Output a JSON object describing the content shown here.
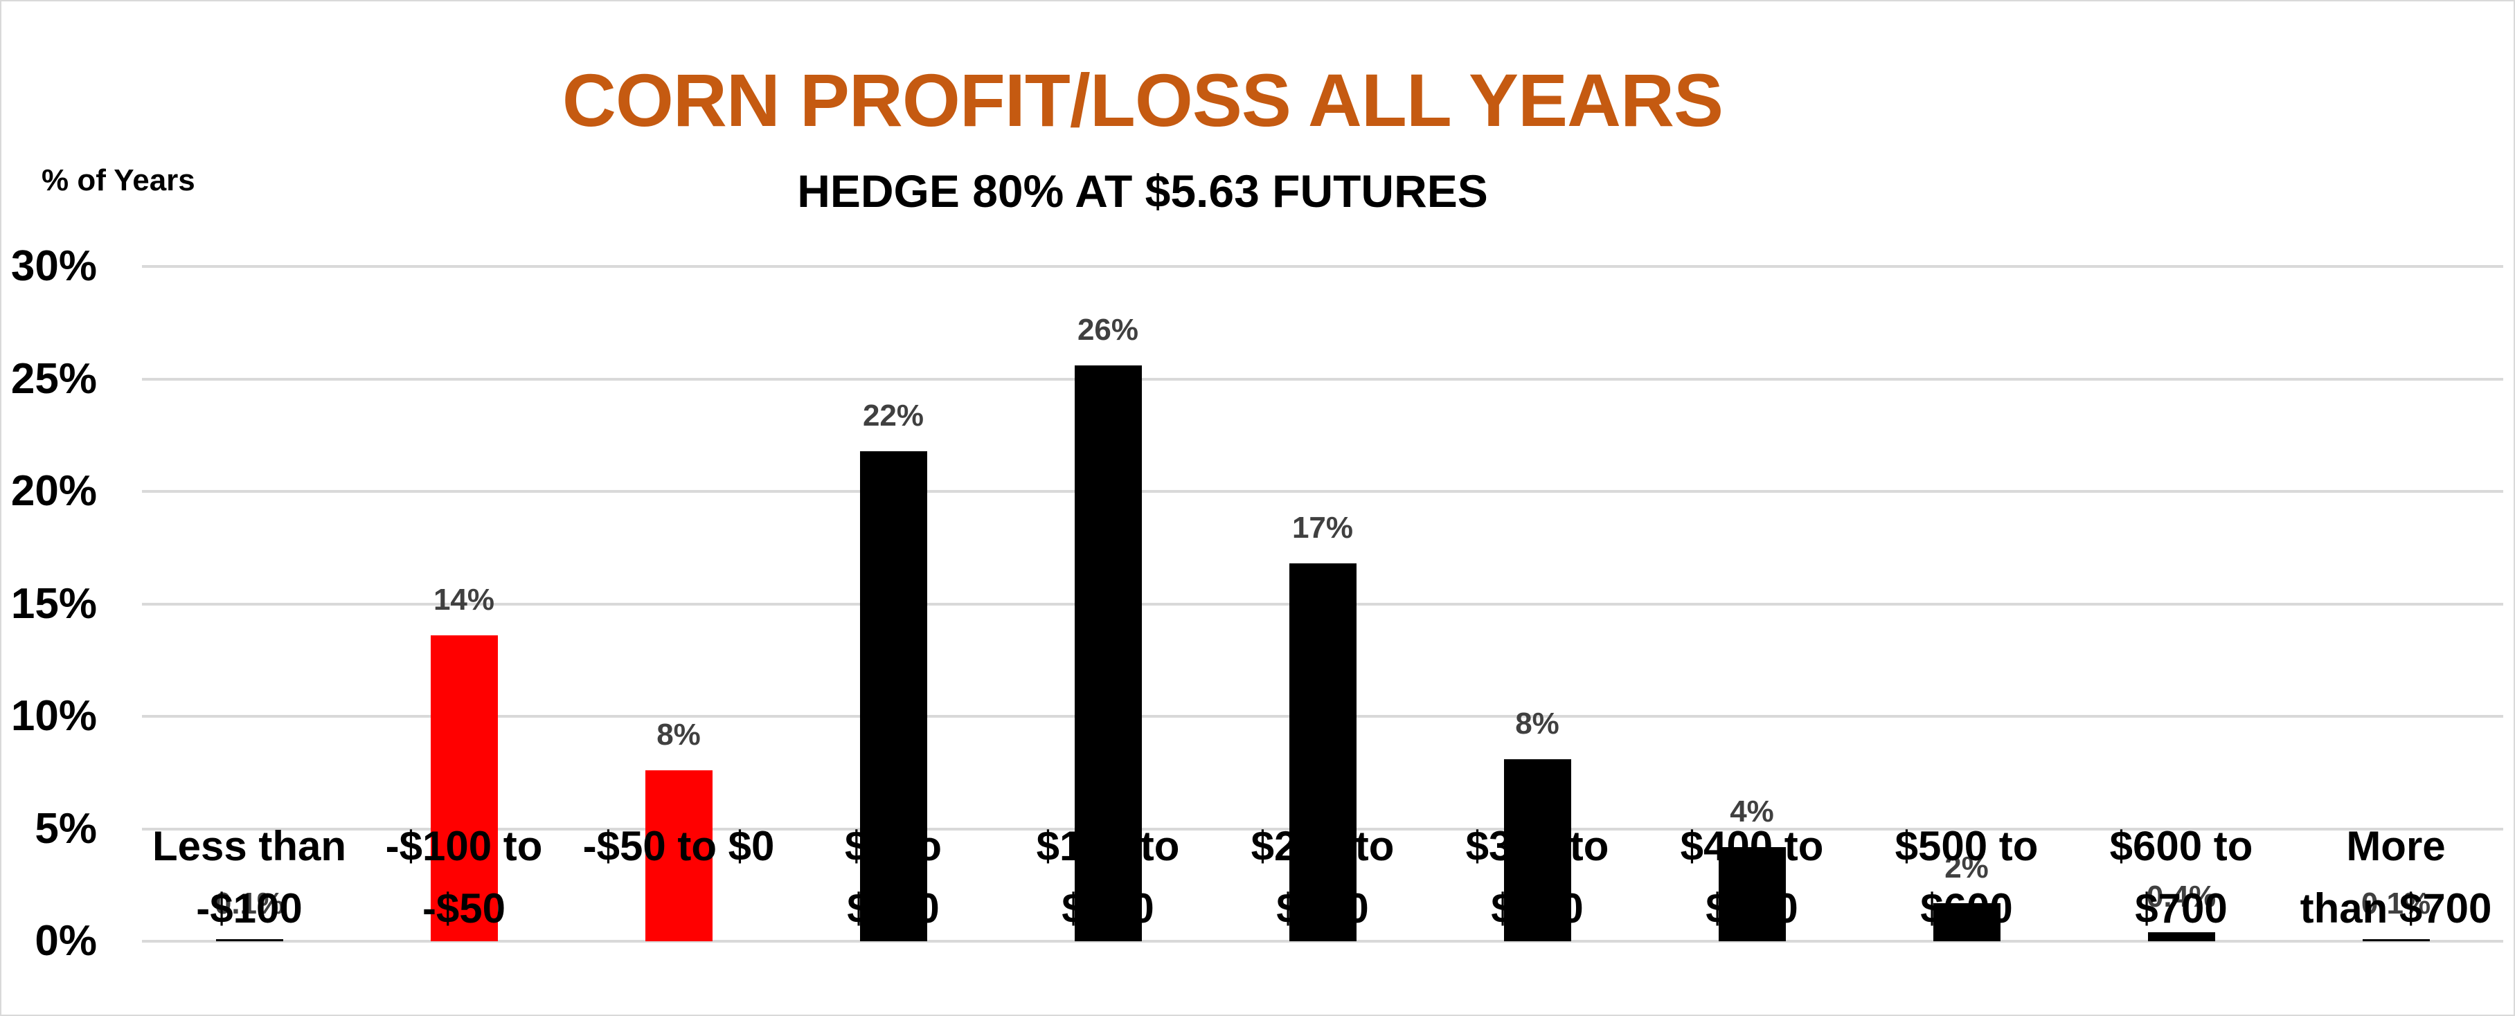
{
  "chart_data": {
    "type": "bar",
    "title": "CORN PROFIT/LOSS ALL YEARS",
    "subtitle": "HEDGE 80% AT $5.63 FUTURES",
    "xlabel": "",
    "ylabel": "% of Years",
    "ylim": [
      0,
      30
    ],
    "yticks": [
      "0%",
      "5%",
      "10%",
      "15%",
      "20%",
      "25%",
      "30%"
    ],
    "grid": true,
    "legend": "none",
    "categories": [
      "Less than -$100",
      "-$100 to -$50",
      "-$50 to $0",
      "$0 to $100",
      "$100 to $200",
      "$200 to $300",
      "$300 to $400",
      "$400 to $500",
      "$500 to $600",
      "$600 to $700",
      "More than $700"
    ],
    "values": [
      0.1,
      13.6,
      7.6,
      21.8,
      25.6,
      16.8,
      8.1,
      4.2,
      1.7,
      0.4,
      0.1
    ],
    "data_labels": [
      "0.1%",
      "14%",
      "8%",
      "22%",
      "26%",
      "17%",
      "8%",
      "4%",
      "2%",
      "0.4%",
      "0.1%"
    ],
    "colors": [
      "#000000",
      "#FF0000",
      "#FF0000",
      "#000000",
      "#000000",
      "#000000",
      "#000000",
      "#000000",
      "#000000",
      "#000000",
      "#000000"
    ]
  },
  "header": {
    "title": "CORN PROFIT/LOSS ALL YEARS",
    "subtitle": "HEDGE 80% AT $5.63 FUTURES",
    "title_color": "#C55A11"
  },
  "axis": {
    "y_title": "% of Years",
    "y_ticks": [
      "30%",
      "25%",
      "20%",
      "15%",
      "10%",
      "5%",
      "0%"
    ]
  },
  "x_labels": [
    "Less than\n-$100",
    "-$100 to\n-$50",
    "-$50 to $0",
    "$0 to\n$100",
    "$100 to\n$200",
    "$200 to\n$300",
    "$300 to\n$400",
    "$400 to\n$500",
    "$500 to\n$600",
    "$600 to\n$700",
    "More\nthan $700"
  ]
}
